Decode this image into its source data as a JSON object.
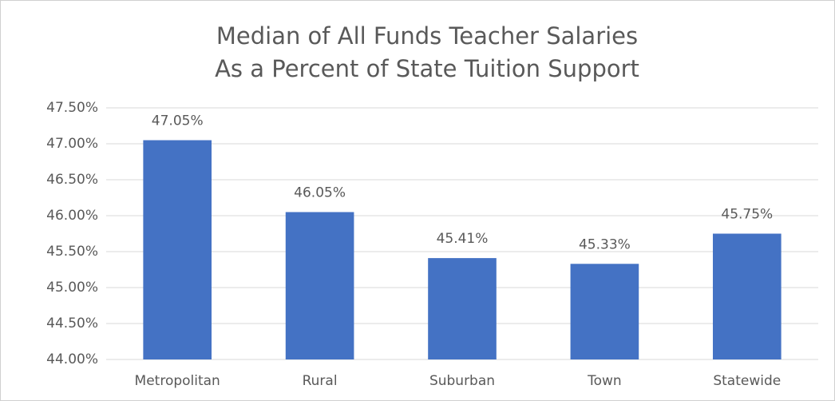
{
  "chart_data": {
    "type": "bar",
    "title": [
      "Median of All Funds Teacher Salaries",
      "As a Percent of State Tuition Support"
    ],
    "categories": [
      "Metropolitan",
      "Rural",
      "Suburban",
      "Town",
      "Statewide"
    ],
    "values": [
      47.05,
      46.05,
      45.41,
      45.33,
      45.75
    ],
    "value_labels": [
      "47.05%",
      "46.05%",
      "45.41%",
      "45.33%",
      "45.75%"
    ],
    "color": "#4472c4",
    "ylim": [
      44,
      47.5
    ],
    "yticks": [
      {
        "value": 44,
        "label": "44.00%"
      },
      {
        "value": 44.5,
        "label": "44.50%"
      },
      {
        "value": 45,
        "label": "45.00%"
      },
      {
        "value": 45.5,
        "label": "45.50%"
      },
      {
        "value": 46,
        "label": "46.00%"
      },
      {
        "value": 46.5,
        "label": "46.50%"
      },
      {
        "value": 47,
        "label": "47.00%"
      },
      {
        "value": 47.5,
        "label": "47.50%"
      }
    ],
    "grid": true
  }
}
